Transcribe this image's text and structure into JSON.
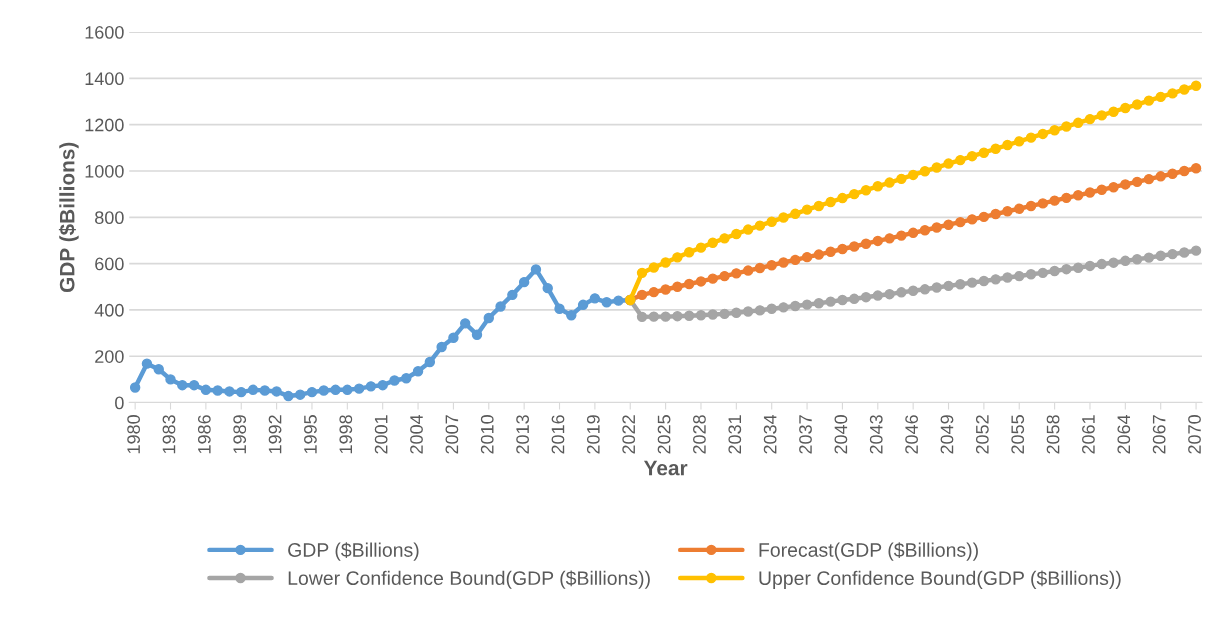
{
  "chart_data": {
    "type": "line",
    "xlabel": "Year",
    "ylabel": "GDP ($Billions)",
    "xlim": [
      1979.5,
      2070.5
    ],
    "xticks": [
      1980,
      1983,
      1986,
      1989,
      1992,
      1995,
      1998,
      2001,
      2004,
      2007,
      2010,
      2013,
      2016,
      2019,
      2022,
      2025,
      2028,
      2031,
      2034,
      2037,
      2040,
      2043,
      2046,
      2049,
      2052,
      2055,
      2058,
      2061,
      2064,
      2067,
      2070
    ],
    "ylim": [
      0,
      1600
    ],
    "yticks": [
      0,
      200,
      400,
      600,
      800,
      1000,
      1200,
      1400,
      1600
    ],
    "grid": "y",
    "legend": "bottom",
    "marker": "circle",
    "line_style": "solid",
    "series": [
      {
        "name": "GDP ($Billions)",
        "color": "#5b9bd5",
        "x": [
          1980,
          1981,
          1982,
          1983,
          1984,
          1985,
          1986,
          1987,
          1988,
          1989,
          1990,
          1991,
          1992,
          1993,
          1994,
          1995,
          1996,
          1997,
          1998,
          1999,
          2000,
          2001,
          2002,
          2003,
          2004,
          2005,
          2006,
          2007,
          2008,
          2009,
          2010,
          2011,
          2012,
          2013,
          2014,
          2015,
          2016,
          2017,
          2018,
          2019,
          2020,
          2021,
          2022
        ],
        "values": [
          65,
          168,
          144,
          100,
          75,
          75,
          55,
          52,
          48,
          45,
          55,
          52,
          48,
          28,
          34,
          45,
          52,
          55,
          55,
          60,
          70,
          75,
          95,
          105,
          135,
          175,
          240,
          280,
          342,
          293,
          365,
          415,
          465,
          520,
          575,
          494,
          405,
          377,
          422,
          450,
          433,
          440,
          443
        ]
      },
      {
        "name": "Forecast(GDP ($Billions))",
        "color": "#ed7d31",
        "x": [
          2022,
          2023,
          2024,
          2025,
          2026,
          2027,
          2028,
          2029,
          2030,
          2031,
          2032,
          2033,
          2034,
          2035,
          2036,
          2037,
          2038,
          2039,
          2040,
          2041,
          2042,
          2043,
          2044,
          2045,
          2046,
          2047,
          2048,
          2049,
          2050,
          2051,
          2052,
          2053,
          2054,
          2055,
          2056,
          2057,
          2058,
          2059,
          2060,
          2061,
          2062,
          2063,
          2064,
          2065,
          2066,
          2067,
          2068,
          2069,
          2070
        ],
        "values": [
          443,
          465,
          477,
          488,
          500,
          512,
          523,
          535,
          546,
          558,
          570,
          581,
          593,
          605,
          616,
          628,
          639,
          651,
          663,
          674,
          686,
          698,
          709,
          721,
          733,
          744,
          756,
          768,
          779,
          791,
          802,
          814,
          826,
          837,
          849,
          860,
          872,
          884,
          895,
          907,
          919,
          930,
          942,
          953,
          965,
          977,
          988,
          1000,
          1012
        ]
      },
      {
        "name": "Lower Confidence Bound(GDP ($Billions))",
        "color": "#a5a5a5",
        "x": [
          2022,
          2023,
          2024,
          2025,
          2026,
          2027,
          2028,
          2029,
          2030,
          2031,
          2032,
          2033,
          2034,
          2035,
          2036,
          2037,
          2038,
          2039,
          2040,
          2041,
          2042,
          2043,
          2044,
          2045,
          2046,
          2047,
          2048,
          2049,
          2050,
          2051,
          2052,
          2053,
          2054,
          2055,
          2056,
          2057,
          2058,
          2059,
          2060,
          2061,
          2062,
          2063,
          2064,
          2065,
          2066,
          2067,
          2068,
          2069,
          2070
        ],
        "values": [
          443,
          370,
          371,
          371,
          373,
          375,
          377,
          380,
          383,
          388,
          393,
          398,
          405,
          411,
          417,
          423,
          429,
          436,
          443,
          448,
          455,
          462,
          468,
          476,
          483,
          489,
          497,
          504,
          511,
          518,
          525,
          532,
          540,
          546,
          554,
          560,
          568,
          576,
          582,
          590,
          598,
          604,
          612,
          619,
          626,
          634,
          641,
          648,
          656
        ]
      },
      {
        "name": "Upper Confidence Bound(GDP ($Billions))",
        "color": "#ffc000",
        "x": [
          2022,
          2023,
          2024,
          2025,
          2026,
          2027,
          2028,
          2029,
          2030,
          2031,
          2032,
          2033,
          2034,
          2035,
          2036,
          2037,
          2038,
          2039,
          2040,
          2041,
          2042,
          2043,
          2044,
          2045,
          2046,
          2047,
          2048,
          2049,
          2050,
          2051,
          2052,
          2053,
          2054,
          2055,
          2056,
          2057,
          2058,
          2059,
          2060,
          2061,
          2062,
          2063,
          2064,
          2065,
          2066,
          2067,
          2068,
          2069,
          2070
        ],
        "values": [
          443,
          560,
          583,
          605,
          627,
          649,
          669,
          690,
          709,
          728,
          747,
          764,
          781,
          799,
          815,
          833,
          849,
          866,
          883,
          900,
          917,
          934,
          950,
          966,
          983,
          999,
          1015,
          1032,
          1047,
          1064,
          1079,
          1096,
          1112,
          1128,
          1144,
          1160,
          1176,
          1192,
          1208,
          1224,
          1240,
          1256,
          1272,
          1287,
          1304,
          1320,
          1335,
          1352,
          1368
        ]
      }
    ]
  }
}
